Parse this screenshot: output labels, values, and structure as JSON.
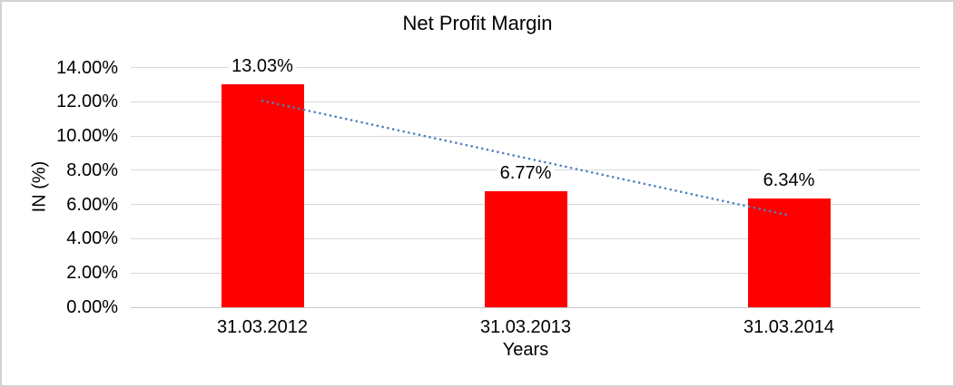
{
  "window": {
    "background": "#ffffff",
    "border_color": "#d3d3d3"
  },
  "chart_data": {
    "type": "bar",
    "title": "Net Profit Margin",
    "xlabel": "Years",
    "ylabel": "IN (%)",
    "categories": [
      "31.03.2012",
      "31.03.2013",
      "31.03.2014"
    ],
    "values": [
      13.03,
      6.77,
      6.34
    ],
    "data_labels": [
      "13.03%",
      "6.77%",
      "6.34%"
    ],
    "ylim": [
      0,
      14
    ],
    "ytick_step": 2,
    "ytick_labels": [
      "0.00%",
      "2.00%",
      "4.00%",
      "6.00%",
      "8.00%",
      "10.00%",
      "12.00%",
      "14.00%"
    ],
    "grid": "horizontal",
    "legend_position": "none",
    "bar_color": "#ff0000",
    "gridline_color": "#d9d9d9",
    "axis_line_color": "#c8c8c8",
    "text_color": "#000000",
    "trendline": {
      "type": "linear",
      "style": "dotted",
      "color": "#4e82c2",
      "start_value": 12.06,
      "end_value": 5.37
    }
  }
}
